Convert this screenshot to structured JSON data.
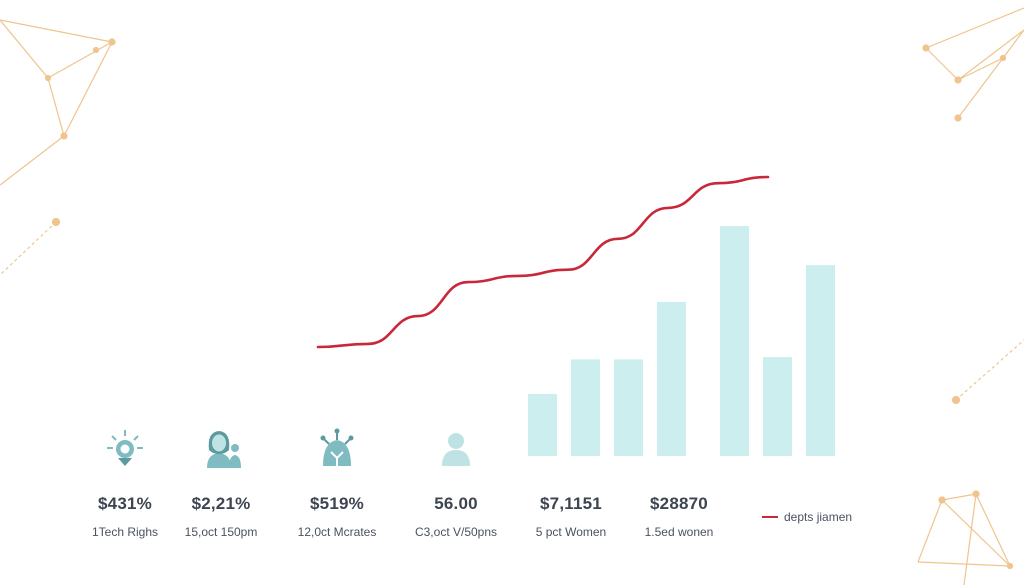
{
  "colors": {
    "bar": "#cdeeee",
    "line": "#c8283a",
    "icon": "#7fbcc1",
    "icon_dark": "#5c9aa0",
    "decor": "#efc48e"
  },
  "chart_data": {
    "type": "bar",
    "title": "",
    "xlabel": "",
    "ylabel": "",
    "ylim": [
      0,
      100
    ],
    "grid": false,
    "bars": {
      "values": [
        27,
        42,
        42,
        67,
        100,
        43,
        83
      ]
    },
    "line": {
      "name": "depts jiamen",
      "values": [
        47,
        48,
        57,
        68,
        70,
        72,
        82,
        92,
        100,
        102
      ]
    },
    "legend_position": "bottom-right"
  },
  "stats": [
    {
      "icon": "lightbulb-icon",
      "value": "$431%",
      "label": "1Tech Righs"
    },
    {
      "icon": "woman-icon",
      "value": "$2,21%",
      "label": "15,oct 150pm"
    },
    {
      "icon": "circuit-icon",
      "value": "$519%",
      "label": "12,0ct Mcrates"
    },
    {
      "icon": "person-icon",
      "value": "56.00",
      "label": "C3,oct V/50pns"
    },
    {
      "icon": "",
      "value": "$7,1151",
      "label": "5 pct Women"
    },
    {
      "icon": "",
      "value": "$28870",
      "label": "1.5ed wonen"
    }
  ],
  "legend": {
    "label": "depts jiamen"
  }
}
